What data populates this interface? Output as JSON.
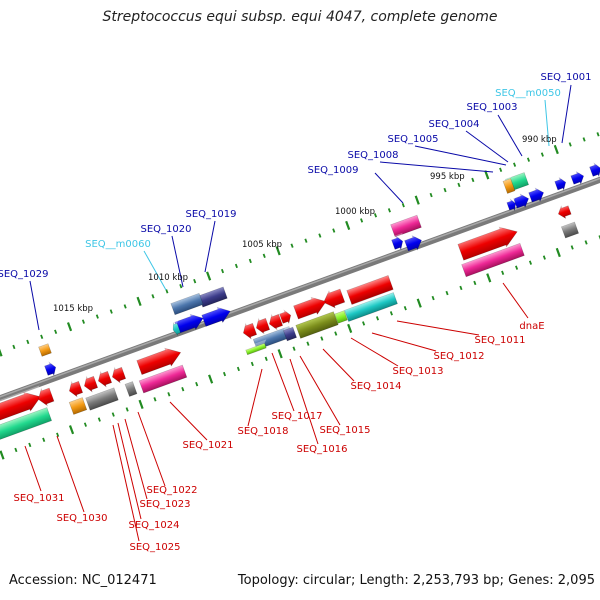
{
  "title": "Streptococcus equi subsp. equi 4047, complete genome",
  "footer": {
    "accession": "Accession: NC_012471",
    "topology": "Topology: circular; Length: 2,253,793 bp; Genes: 2,095"
  },
  "colors": {
    "backbone": "#808080",
    "tick": "#228B22",
    "upper_label": "#0a0aa8",
    "rna_label": "#3ec6e6",
    "lower_label": "#cc0000"
  },
  "scale_labels": [
    "990 kbp",
    "995 kbp",
    "1000 kbp",
    "1005 kbp",
    "1010 kbp",
    "1015 kbp"
  ],
  "upper_labels": [
    "SEQ_1001",
    "SEQ__m0050",
    "SEQ_1003",
    "SEQ_1004",
    "SEQ_1005",
    "SEQ_1008",
    "SEQ_1009",
    "SEQ_1019",
    "SEQ_1020",
    "SEQ__m0060",
    "SEQ_1029"
  ],
  "lower_labels": [
    "dnaE",
    "SEQ_1011",
    "SEQ_1012",
    "SEQ_1013",
    "SEQ_1014",
    "SEQ_1015",
    "SEQ_1016",
    "SEQ_1017",
    "SEQ_1018",
    "SEQ_1021",
    "SEQ_1022",
    "SEQ_1023",
    "SEQ_1024",
    "SEQ_1025",
    "SEQ_1030",
    "SEQ_1031"
  ]
}
